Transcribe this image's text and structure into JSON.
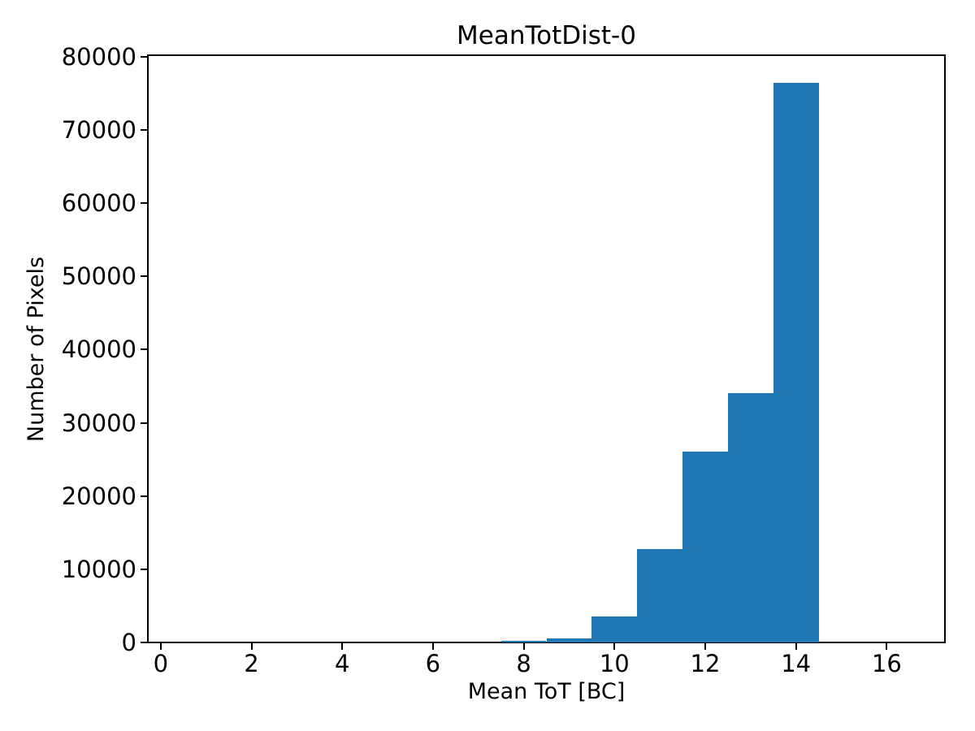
{
  "figure": {
    "background_color": "#ffffff",
    "text_color": "#000000"
  },
  "chart_data": {
    "type": "bar",
    "subtype": "histogram",
    "title": "MeanTotDist-0",
    "xlabel": "Mean ToT [BC]",
    "ylabel": "Number of Pixels",
    "bar_color": "#1f77b4",
    "bin_edges": [
      0.5,
      1.5,
      2.5,
      3.5,
      4.5,
      5.5,
      6.5,
      7.5,
      8.5,
      9.5,
      10.5,
      11.5,
      12.5,
      13.5,
      14.5,
      15.5,
      16.5
    ],
    "counts": [
      0,
      0,
      0,
      0,
      0,
      0,
      0,
      280,
      610,
      3570,
      12790,
      26110,
      34050,
      76380,
      0,
      0
    ],
    "xlim": [
      -0.3,
      17.3
    ],
    "ylim": [
      0,
      80200
    ],
    "xticks": [
      0,
      2,
      4,
      6,
      8,
      10,
      12,
      14,
      16
    ],
    "yticks": [
      0,
      10000,
      20000,
      30000,
      40000,
      50000,
      60000,
      70000,
      80000
    ],
    "grid": false,
    "legend": null
  }
}
